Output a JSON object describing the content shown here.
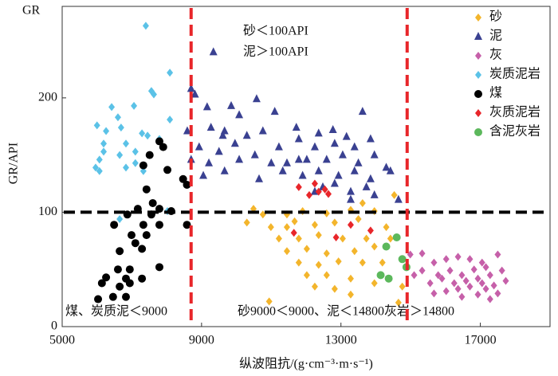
{
  "chart_data": {
    "type": "scatter",
    "corner_label": "GR",
    "y_label": "GR/API",
    "x_label": "纵波阻抗/(g·cm⁻³·m·s⁻¹)",
    "xlim": [
      5000,
      19000
    ],
    "ylim": [
      0,
      280
    ],
    "xticks": [
      5000,
      9000,
      13000,
      17000
    ],
    "yticks": [
      0,
      100,
      200
    ],
    "ref_x": [
      8700,
      14900
    ],
    "ref_y": [
      100
    ],
    "annotations": [
      "砂＜100API",
      "泥＞100API",
      "煤、炭质泥＜9000",
      "砂9000＜9000、泥＜14800灰岩＞14800"
    ],
    "legend": "upper right",
    "series": [
      {
        "name": "砂",
        "color": "#f3b52c",
        "marker": "diamond",
        "x": [
          10490,
          11450,
          11900,
          12590,
          13280,
          13960,
          14530,
          10300,
          10990,
          11670,
          12250,
          12820,
          13500,
          14300,
          11220,
          11790,
          12360,
          13050,
          13730,
          14420,
          11450,
          12020,
          12590,
          13390,
          13960,
          11790,
          12360,
          12930,
          13620,
          12020,
          12590,
          13280,
          12250,
          12820,
          13960,
          14760,
          13280,
          10940,
          14650,
          14190,
          11450,
          10760,
          13620
        ],
        "values": [
          103,
          98,
          101,
          99,
          102,
          101,
          115,
          91,
          87,
          92,
          89,
          91,
          94,
          87,
          77,
          77,
          80,
          77,
          77,
          77,
          66,
          68,
          64,
          66,
          70,
          56,
          54,
          57,
          56,
          45,
          45,
          42,
          35,
          33,
          38,
          35,
          28,
          22,
          21,
          56,
          87,
          98,
          108
        ]
      },
      {
        "name": "泥",
        "color": "#3a4191",
        "marker": "triangle",
        "x": [
          9340,
          8700,
          8810,
          9160,
          9850,
          10580,
          10080,
          11100,
          8590,
          9270,
          9660,
          10300,
          10760,
          11720,
          12360,
          12770,
          13160,
          13620,
          13850,
          8930,
          9500,
          9960,
          10530,
          11220,
          11790,
          12250,
          12820,
          13390,
          13960,
          8700,
          9210,
          10080,
          11000,
          11450,
          12020,
          12590,
          13050,
          13500,
          14300,
          9050,
          9660,
          10650,
          11330,
          11900,
          12360,
          12930,
          13390,
          13850,
          14420,
          12480,
          13280,
          13960,
          13730,
          12250,
          14650,
          13280,
          12820,
          11790,
          9610
        ],
        "values": [
          240,
          208,
          203,
          192,
          193,
          199,
          185,
          188,
          171,
          174,
          171,
          167,
          171,
          174,
          169,
          172,
          166,
          188,
          164,
          157,
          153,
          160,
          150,
          157,
          164,
          157,
          160,
          157,
          150,
          146,
          143,
          146,
          143,
          143,
          146,
          146,
          150,
          143,
          139,
          132,
          136,
          129,
          136,
          132,
          136,
          132,
          136,
          129,
          136,
          122,
          118,
          115,
          122,
          118,
          111,
          111,
          125,
          146,
          167
        ]
      },
      {
        "name": "灰",
        "color": "#c660a9",
        "marker": "diamond",
        "x": [
          14990,
          15330,
          15670,
          16020,
          16360,
          16700,
          17050,
          17500,
          15330,
          15790,
          16130,
          16470,
          16820,
          17160,
          15560,
          15900,
          16250,
          16590,
          16930,
          17280,
          17620,
          16020,
          16360,
          16700,
          17050,
          17390,
          17730,
          16470,
          16930,
          17280,
          15100,
          15670,
          17500,
          17160
        ],
        "values": [
          63,
          64,
          56,
          59,
          61,
          59,
          56,
          63,
          49,
          45,
          49,
          45,
          50,
          52,
          38,
          42,
          38,
          40,
          42,
          45,
          49,
          31,
          33,
          35,
          38,
          36,
          40,
          26,
          28,
          24,
          45,
          29,
          29,
          33
        ]
      },
      {
        "name": "炭质泥岩",
        "color": "#5bc2e7",
        "marker": "diamond",
        "x": [
          7400,
          8090,
          7560,
          7630,
          7060,
          6420,
          6600,
          6000,
          6690,
          6260,
          7290,
          6190,
          6830,
          6190,
          7100,
          6650,
          6070,
          7100,
          5960,
          6830,
          7450,
          7790,
          7330,
          8090,
          6070,
          8020,
          6650
        ],
        "values": [
          263,
          222,
          206,
          203,
          193,
          192,
          183,
          176,
          174,
          171,
          169,
          160,
          160,
          153,
          153,
          150,
          146,
          143,
          139,
          139,
          167,
          164,
          136,
          181,
          136,
          101,
          94
        ]
      },
      {
        "name": "煤",
        "color": "#000000",
        "marker": "circle",
        "x": [
          7790,
          7900,
          7510,
          7330,
          8020,
          8470,
          8580,
          7420,
          7600,
          7170,
          7790,
          6870,
          7560,
          8130,
          6490,
          7330,
          7790,
          8580,
          6990,
          7420,
          7100,
          7290,
          6650,
          7790,
          6600,
          6940,
          6260,
          6830,
          7290,
          6140,
          6650,
          6940,
          6460,
          6030,
          6830
        ],
        "values": [
          162,
          157,
          150,
          141,
          137,
          129,
          124,
          120,
          108,
          103,
          103,
          98,
          98,
          101,
          89,
          89,
          89,
          89,
          80,
          80,
          73,
          68,
          66,
          52,
          50,
          50,
          43,
          42,
          42,
          38,
          35,
          38,
          26,
          24,
          26
        ]
      },
      {
        "name": "灰质泥岩",
        "color": "#e8262a",
        "marker": "diamond",
        "x": [
          11790,
          12250,
          12360,
          12540,
          12640,
          12090,
          11650,
          12860,
          13280,
          13850
        ],
        "values": [
          122,
          125,
          118,
          120,
          116,
          115,
          82,
          78,
          89,
          84
        ]
      },
      {
        "name": "含泥灰岩",
        "color": "#5cb85c",
        "marker": "circle",
        "x": [
          14300,
          14600,
          14760,
          14140,
          14370,
          14880
        ],
        "values": [
          70,
          78,
          59,
          45,
          42,
          52
        ]
      }
    ]
  }
}
